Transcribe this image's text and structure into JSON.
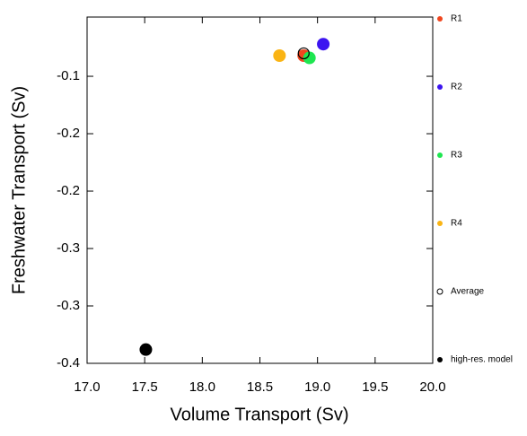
{
  "chart_data": {
    "type": "scatter",
    "xlabel": "Volume Transport (Sv)",
    "ylabel": "Freshwater Transport (Sv)",
    "xlim": [
      17.0,
      20.0
    ],
    "ylim": [
      -0.35,
      -0.0484
    ],
    "xticks": [
      {
        "value": 17.0,
        "label": "17.0"
      },
      {
        "value": 17.5,
        "label": "17.5"
      },
      {
        "value": 18.0,
        "label": "18.0"
      },
      {
        "value": 18.5,
        "label": "18.5"
      },
      {
        "value": 19.0,
        "label": "19.0"
      },
      {
        "value": 19.5,
        "label": "19.5"
      },
      {
        "value": 20.0,
        "label": "20.0"
      }
    ],
    "yticks": [
      -0.1,
      {
        "value": -0.15,
        "label": "-0.2"
      },
      -0.2,
      {
        "value": -0.25,
        "label": "-0.3"
      },
      -0.3,
      {
        "value": -0.35,
        "label": "-0.4"
      }
    ],
    "series": [
      {
        "name": "R1",
        "color": "#f0461e",
        "x": [
          18.88
        ],
        "values": [
          -0.082
        ]
      },
      {
        "name": "R2",
        "color": "#3c14f0",
        "x": [
          19.05
        ],
        "values": [
          -0.072
        ]
      },
      {
        "name": "R3",
        "color": "#1ee650",
        "x": [
          18.93
        ],
        "values": [
          -0.084
        ]
      },
      {
        "name": "R4",
        "color": "#fab414",
        "x": [
          18.67
        ],
        "values": [
          -0.082
        ]
      },
      {
        "name": "Average",
        "color": "#000000",
        "x": [
          18.88
        ],
        "values": [
          -0.08
        ]
      },
      {
        "name": "high-res. model",
        "color": "#000000",
        "x": [
          17.51
        ],
        "values": [
          -0.338
        ]
      }
    ]
  }
}
